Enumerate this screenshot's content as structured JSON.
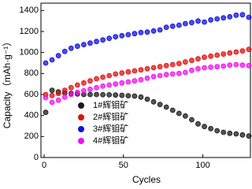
{
  "chart_data": {
    "type": "scatter",
    "x_label": "Cycles",
    "y_label": "Capacity（mAh·g⁻¹）",
    "xlim": [
      -2,
      130
    ],
    "ylim": [
      0,
      1470
    ],
    "xticks": [
      0,
      50,
      100
    ],
    "yticks": [
      0,
      200,
      400,
      600,
      800,
      1000,
      1200,
      1400
    ],
    "x": [
      1,
      5,
      9,
      13,
      17,
      21,
      25,
      29,
      33,
      37,
      41,
      45,
      49,
      53,
      57,
      61,
      65,
      69,
      73,
      77,
      81,
      85,
      89,
      93,
      97,
      101,
      105,
      109,
      113,
      117,
      121,
      125,
      129
    ],
    "series": [
      {
        "name": "1#辉钼矿",
        "color": "#1a1a1a",
        "values": [
          430,
          640,
          625,
          615,
          610,
          605,
          600,
          600,
          600,
          598,
          597,
          595,
          592,
          588,
          585,
          575,
          555,
          530,
          505,
          480,
          450,
          420,
          395,
          360,
          320,
          295,
          275,
          255,
          240,
          230,
          225,
          215,
          205
        ]
      },
      {
        "name": "2#辉钼矿",
        "color": "#e01010",
        "values": [
          600,
          590,
          610,
          640,
          665,
          690,
          710,
          730,
          750,
          765,
          780,
          795,
          805,
          815,
          825,
          835,
          845,
          855,
          865,
          875,
          885,
          895,
          910,
          925,
          940,
          955,
          965,
          975,
          985,
          995,
          1005,
          1015,
          1030
        ]
      },
      {
        "name": "3#辉钼矿",
        "color": "#1010e0",
        "values": [
          900,
          930,
          970,
          1010,
          1040,
          1060,
          1075,
          1090,
          1105,
          1120,
          1135,
          1150,
          1160,
          1170,
          1180,
          1190,
          1195,
          1205,
          1215,
          1240,
          1250,
          1260,
          1275,
          1285,
          1300,
          1290,
          1310,
          1320,
          1330,
          1340,
          1355,
          1360,
          1335
        ]
      },
      {
        "name": "4#辉钼矿",
        "color": "#f010f0",
        "values": [
          570,
          525,
          545,
          575,
          600,
          620,
          635,
          650,
          665,
          680,
          690,
          700,
          710,
          720,
          730,
          740,
          755,
          770,
          780,
          790,
          795,
          800,
          810,
          830,
          845,
          855,
          860,
          865,
          870,
          880,
          885,
          880,
          875
        ]
      }
    ]
  }
}
